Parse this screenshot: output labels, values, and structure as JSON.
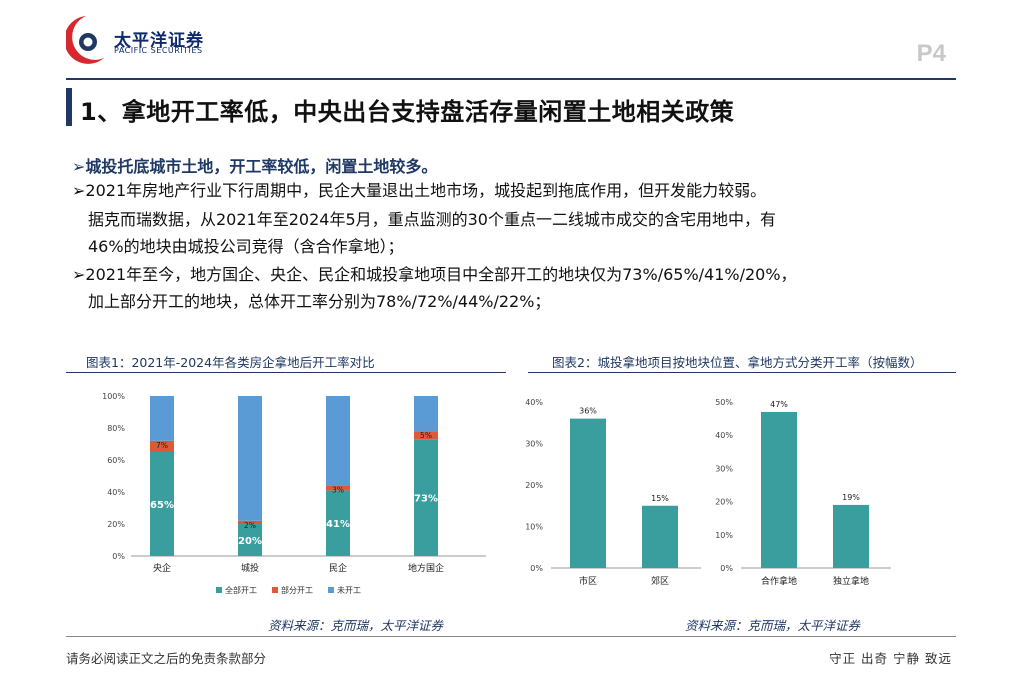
{
  "header": {
    "logo_cn": "太平洋证券",
    "logo_en": "PACIFIC SECURITIES",
    "page_num": "P4",
    "brand_color": "#d7282f",
    "navy": "#1f3864"
  },
  "title": "1、拿地开工率低，中央出台支持盘活存量闲置土地相关政策",
  "bullets": {
    "b1": {
      "arrow": "➢",
      "text": "城投托底城市土地，开工率较低，闲置土地较多。"
    },
    "b2": {
      "arrow": "➢",
      "text": "2021年房地产行业下行周期中，民企大量退出土地市场，城投起到拖底作用，但开发能力较弱。"
    },
    "b2c1": "据克而瑞数据，从2021年至2024年5月，重点监测的30个重点一二线城市成交的含宅用地中，有",
    "b2c2": "46%的地块由城投公司竞得（含合作拿地）；",
    "b3": {
      "arrow": "➢",
      "text": "2021年至今，地方国企、央企、民企和城投拿地项目中全部开工的地块仅为73%/65%/41%/20%，"
    },
    "b3c1": "加上部分开工的地块，总体开工率分别为78%/72%/44%/22%；"
  },
  "figures": {
    "fig1_title": "图表1：2021年-2024年各类房企拿地后开工率对比",
    "fig2_title": "图表2：城投拿地项目按地块位置、拿地方式分类开工率（按幅数）",
    "src1": "资料来源：克而瑞，太平洋证券",
    "src2": "资料来源：克而瑞，太平洋证券"
  },
  "chart_data": [
    {
      "type": "bar",
      "stacked": true,
      "categories": [
        "央企",
        "城投",
        "民企",
        "地方国企"
      ],
      "series": [
        {
          "name": "全部开工",
          "values": [
            65,
            20,
            41,
            73
          ],
          "color": "#3a9e9e"
        },
        {
          "name": "部分开工",
          "values": [
            7,
            2,
            3,
            5
          ],
          "color": "#e0583a"
        },
        {
          "name": "未开工",
          "values": [
            28,
            78,
            56,
            22
          ],
          "color": "#5b9bd5"
        }
      ],
      "data_labels": {
        "全部开工": [
          "65%",
          "20%",
          "41%",
          "73%"
        ],
        "部分开工": [
          "7%",
          "2%",
          "3%",
          "5%"
        ]
      },
      "yticks": [
        "0%",
        "20%",
        "40%",
        "60%",
        "80%",
        "100%"
      ],
      "ylim": [
        0,
        100
      ],
      "legend": "bottom"
    },
    {
      "type": "bar",
      "categories": [
        "市区",
        "郊区"
      ],
      "values": [
        36,
        15
      ],
      "labels": [
        "36%",
        "15%"
      ],
      "yticks": [
        "0%",
        "10%",
        "20%",
        "30%",
        "40%"
      ],
      "ylim": [
        0,
        40
      ],
      "color": "#3a9e9e"
    },
    {
      "type": "bar",
      "categories": [
        "合作拿地",
        "独立拿地"
      ],
      "values": [
        47,
        19
      ],
      "labels": [
        "47%",
        "19%"
      ],
      "yticks": [
        "0%",
        "10%",
        "20%",
        "30%",
        "40%",
        "50%"
      ],
      "ylim": [
        0,
        50
      ],
      "color": "#3a9e9e"
    }
  ],
  "footer": {
    "left": "请务必阅读正文之后的免责条款部分",
    "right": "守正  出奇  宁静  致远"
  }
}
